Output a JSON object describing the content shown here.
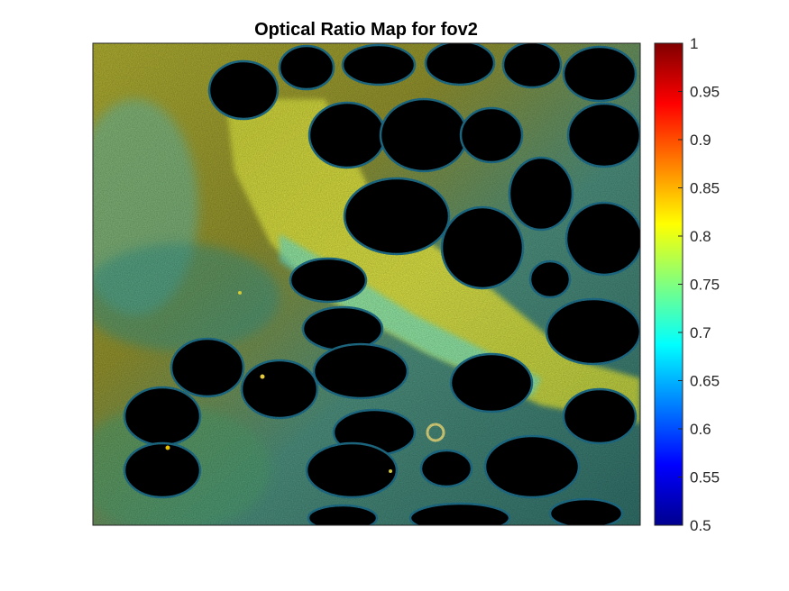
{
  "chart_data": {
    "type": "heatmap",
    "title": "Optical Ratio Map for fov2",
    "xlabel": "",
    "ylabel": "",
    "axis_ticks_visible": false,
    "grid": false,
    "colormap": "jet",
    "clim": [
      0.5,
      1
    ],
    "colorbar": {
      "placement": "right",
      "ticks": [
        0.5,
        0.55,
        0.6,
        0.65,
        0.7,
        0.75,
        0.8,
        0.85,
        0.9,
        0.95,
        1
      ],
      "tick_labels": [
        "0.5",
        "0.55",
        "0.6",
        "0.65",
        "0.7",
        "0.75",
        "0.8",
        "0.85",
        "0.9",
        "0.95",
        "1"
      ]
    },
    "image": {
      "background_color": "#000000",
      "dominant_range": [
        0.65,
        0.85
      ],
      "regions": [
        {
          "kind": "dark-lumen",
          "value": "no data (black)"
        },
        {
          "kind": "tissue-left",
          "value": 0.78,
          "color": "#9a9a28"
        },
        {
          "kind": "tissue-diagonal-band",
          "value": 0.8,
          "color": "#c8d232"
        },
        {
          "kind": "tissue-lower-left",
          "value": 0.72,
          "color": "#3c8c6e"
        }
      ]
    }
  },
  "colors": {
    "jet_stops": [
      "#00008f",
      "#0000ff",
      "#00ffff",
      "#ffff00",
      "#ff0000",
      "#800000"
    ],
    "tissue_yellow": "#c4c83a",
    "tissue_olive": "#8a8a2a",
    "tissue_teal": "#3aa8a0",
    "cyan_edge": "#56e0e0"
  }
}
